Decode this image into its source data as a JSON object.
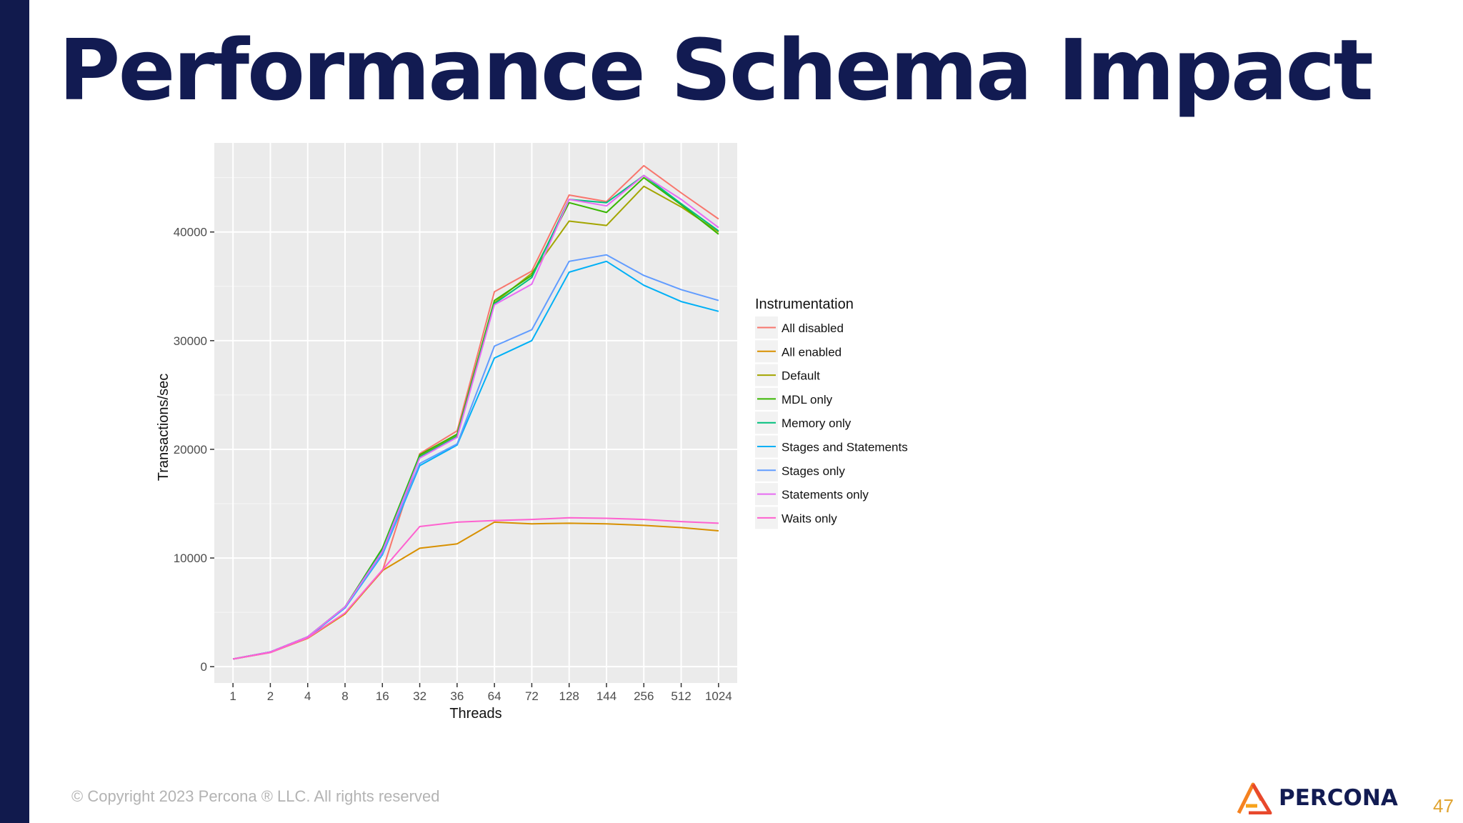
{
  "slide": {
    "title": "Performance Schema Impact",
    "copyright": "© Copyright 2023 Percona ® LLC. All rights reserved",
    "logo_text": "PERCONA",
    "page_number": "47",
    "colors": {
      "left_bar": "#111a4d",
      "title": "#121b52",
      "page_number": "#e0a431"
    }
  },
  "chart_data": {
    "type": "line",
    "title": "",
    "xlabel": "Threads",
    "ylabel": "Transactions/sec",
    "categories": [
      "1",
      "2",
      "4",
      "8",
      "16",
      "32",
      "36",
      "64",
      "72",
      "128",
      "144",
      "256",
      "512",
      "1024"
    ],
    "yticks": [
      0,
      10000,
      20000,
      30000,
      40000
    ],
    "ylim": [
      -1500,
      48200
    ],
    "grid": true,
    "legend": {
      "title": "Instrumentation",
      "position": "right"
    },
    "series": [
      {
        "name": "All disabled",
        "color": "#f8766d",
        "values": [
          700,
          1350,
          2700,
          4900,
          8800,
          19600,
          21700,
          34500,
          36400,
          43400,
          42800,
          46100,
          43600,
          41200
        ]
      },
      {
        "name": "All enabled",
        "color": "#d89000",
        "values": [
          700,
          1300,
          2600,
          4850,
          8850,
          10900,
          11300,
          13300,
          13150,
          13200,
          13150,
          13000,
          12800,
          12500
        ]
      },
      {
        "name": "Default",
        "color": "#a3a500",
        "values": [
          700,
          1350,
          2750,
          5500,
          10800,
          19400,
          21300,
          33500,
          36200,
          41000,
          40600,
          44200,
          42300,
          40000
        ]
      },
      {
        "name": "MDL only",
        "color": "#39b600",
        "values": [
          700,
          1350,
          2750,
          5500,
          10900,
          19500,
          21400,
          33700,
          36000,
          42700,
          41800,
          45000,
          42500,
          39800
        ]
      },
      {
        "name": "Memory only",
        "color": "#00bf7d",
        "values": [
          700,
          1350,
          2750,
          5500,
          10700,
          19300,
          21200,
          33400,
          35800,
          43000,
          42700,
          45200,
          42600,
          40100
        ]
      },
      {
        "name": "Stages and Statements",
        "color": "#00b0f6",
        "values": [
          700,
          1350,
          2700,
          5400,
          10300,
          18500,
          20400,
          28400,
          30000,
          36300,
          37300,
          35100,
          33600,
          32700
        ]
      },
      {
        "name": "Stages only",
        "color": "#619cff",
        "values": [
          700,
          1350,
          2750,
          5450,
          10400,
          18700,
          20500,
          29500,
          31000,
          37300,
          37900,
          36000,
          34700,
          33700
        ]
      },
      {
        "name": "Statements only",
        "color": "#e76bf3",
        "values": [
          700,
          1350,
          2750,
          5500,
          10600,
          19200,
          21100,
          33300,
          35200,
          43000,
          42400,
          45200,
          43000,
          40400
        ]
      },
      {
        "name": "Waits only",
        "color": "#fe61cf",
        "values": [
          700,
          1300,
          2650,
          4950,
          8900,
          12900,
          13300,
          13450,
          13550,
          13700,
          13650,
          13550,
          13350,
          13200
        ]
      }
    ]
  }
}
